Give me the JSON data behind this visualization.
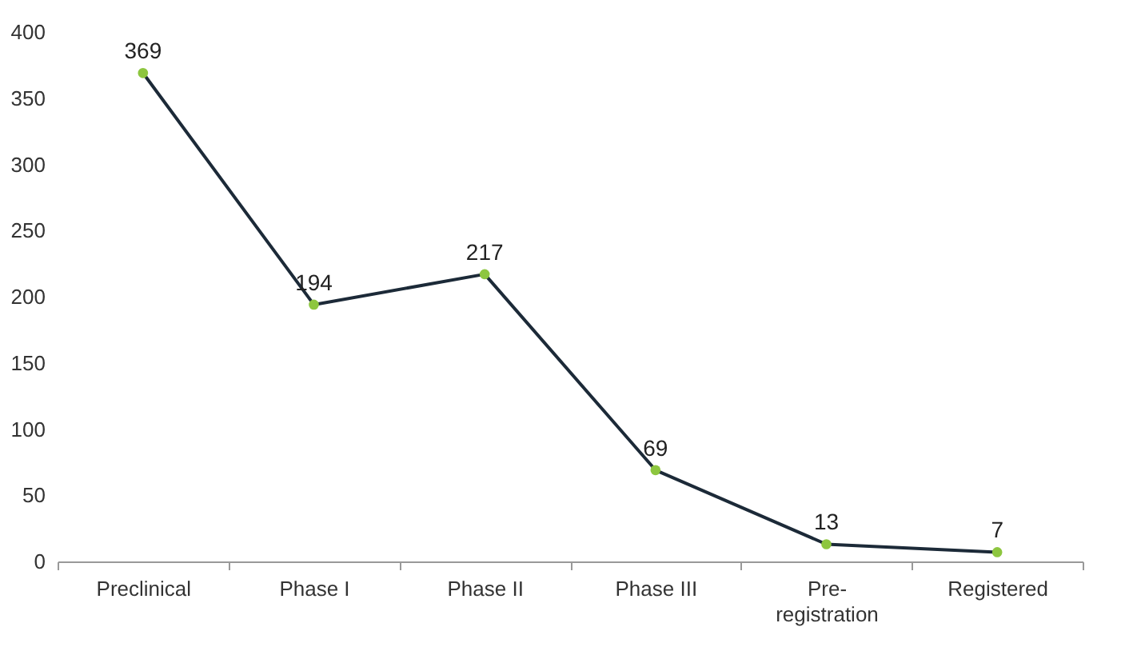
{
  "chart_data": {
    "type": "line",
    "categories": [
      "Preclinical",
      "Phase I",
      "Phase II",
      "Phase III",
      "Pre-registration",
      "Registered"
    ],
    "values": [
      369,
      194,
      217,
      69,
      13,
      7
    ],
    "color": "#1c2a38",
    "colors": [
      "#8dc63f",
      "#8dc63f",
      "#8dc63f",
      "#8dc63f",
      "#8dc63f",
      "#8dc63f"
    ],
    "ylim": [
      0,
      400
    ],
    "yticks": [
      0,
      50,
      100,
      150,
      200,
      250,
      300,
      350,
      400
    ],
    "grid": false,
    "marker": "circle",
    "data_labels": true
  }
}
